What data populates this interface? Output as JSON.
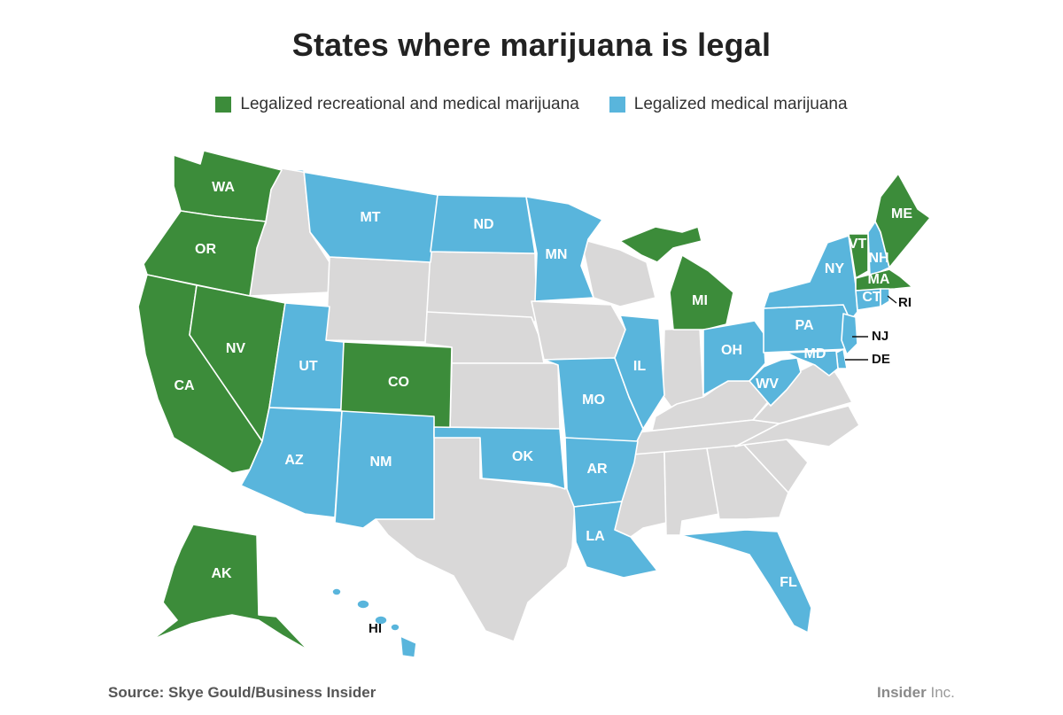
{
  "title": "States where marijuana is legal",
  "legend": [
    {
      "label": "Legalized recreational and medical marijuana",
      "color": "#3c8c3a"
    },
    {
      "label": "Legalized medical marijuana",
      "color": "#59b5dc"
    }
  ],
  "colors": {
    "recreational": "#3c8c3a",
    "medical": "#59b5dc",
    "none": "#d9d8d8"
  },
  "states": {
    "WA": {
      "label": "WA",
      "status": "recreational"
    },
    "OR": {
      "label": "OR",
      "status": "recreational"
    },
    "CA": {
      "label": "CA",
      "status": "recreational"
    },
    "NV": {
      "label": "NV",
      "status": "recreational"
    },
    "CO": {
      "label": "CO",
      "status": "recreational"
    },
    "MI": {
      "label": "MI",
      "status": "recreational"
    },
    "ME": {
      "label": "ME",
      "status": "recreational"
    },
    "VT": {
      "label": "VT",
      "status": "recreational"
    },
    "MA": {
      "label": "MA",
      "status": "recreational"
    },
    "AK": {
      "label": "AK",
      "status": "recreational"
    },
    "MT": {
      "label": "MT",
      "status": "medical"
    },
    "ND": {
      "label": "ND",
      "status": "medical"
    },
    "MN": {
      "label": "MN",
      "status": "medical"
    },
    "UT": {
      "label": "UT",
      "status": "medical"
    },
    "AZ": {
      "label": "AZ",
      "status": "medical"
    },
    "NM": {
      "label": "NM",
      "status": "medical"
    },
    "OK": {
      "label": "OK",
      "status": "medical"
    },
    "AR": {
      "label": "AR",
      "status": "medical"
    },
    "LA": {
      "label": "LA",
      "status": "medical"
    },
    "MO": {
      "label": "MO",
      "status": "medical"
    },
    "IL": {
      "label": "IL",
      "status": "medical"
    },
    "OH": {
      "label": "OH",
      "status": "medical"
    },
    "WV": {
      "label": "WV",
      "status": "medical"
    },
    "PA": {
      "label": "PA",
      "status": "medical"
    },
    "NY": {
      "label": "NY",
      "status": "medical"
    },
    "NH": {
      "label": "NH",
      "status": "medical"
    },
    "CT": {
      "label": "CT",
      "status": "medical"
    },
    "RI": {
      "label": "RI",
      "status": "medical"
    },
    "NJ": {
      "label": "NJ",
      "status": "medical"
    },
    "DE": {
      "label": "DE",
      "status": "medical"
    },
    "MD": {
      "label": "MD",
      "status": "medical"
    },
    "FL": {
      "label": "FL",
      "status": "medical"
    },
    "HI": {
      "label": "HI",
      "status": "medical"
    }
  },
  "source": "Source: Skye Gould/Business Insider",
  "brand": {
    "name": "Insider",
    "suffix": " Inc."
  }
}
